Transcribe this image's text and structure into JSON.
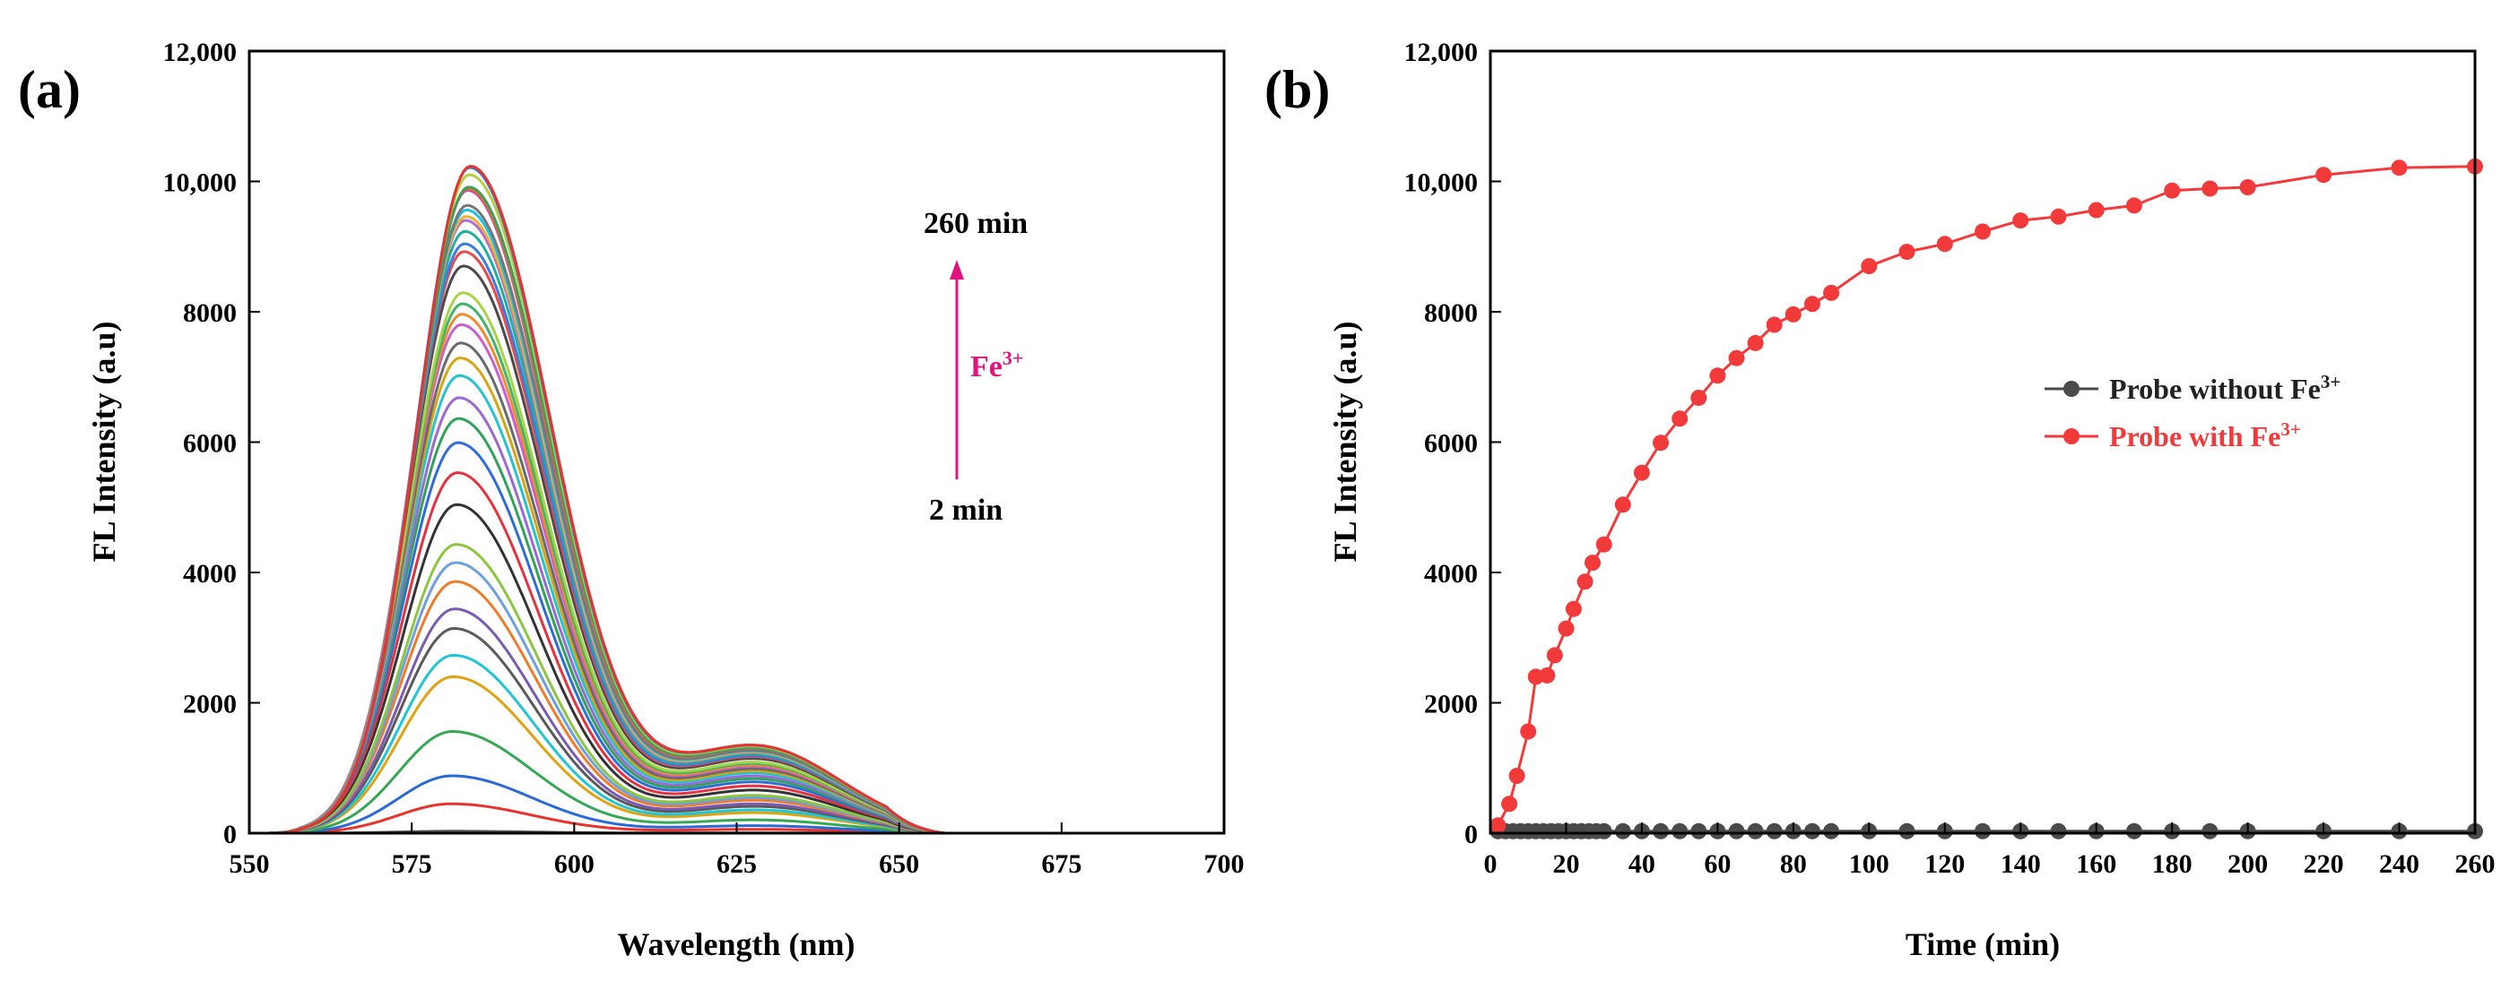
{
  "chart_data": [
    {
      "panel": "(a)",
      "type": "line",
      "title": "",
      "xlabel": "Wavelength (nm)",
      "ylabel": "FL Intensity (a.u)",
      "xlim": [
        550,
        700
      ],
      "ylim": [
        0,
        12000
      ],
      "xticks": [
        550,
        575,
        600,
        625,
        650,
        675,
        700
      ],
      "yticks": [
        0,
        2000,
        4000,
        6000,
        8000,
        10000,
        12000
      ],
      "xtick_labels": [
        "550",
        "575",
        "600",
        "625",
        "650",
        "675",
        "700"
      ],
      "ytick_labels": [
        "0",
        "2000",
        "4000",
        "6000",
        "8000",
        "10,000",
        "12,000"
      ],
      "peak_wavelengths_nm": [
        581,
        582,
        583,
        584
      ],
      "series_peak_intensities": [
        30,
        450,
        880,
        1560,
        2400,
        2730,
        3140,
        3440,
        3860,
        4150,
        4430,
        5040,
        5530,
        5990,
        6360,
        6680,
        7020,
        7290,
        7520,
        7800,
        7960,
        8120,
        8290,
        8700,
        8920,
        9040,
        9230,
        9400,
        9460,
        9560,
        9630,
        9860,
        9890,
        9910,
        10100,
        10210,
        10230
      ],
      "series_colors": [
        "#555555",
        "#e8322c",
        "#2a6ad6",
        "#35a853",
        "#e0a310",
        "#1ec6d6",
        "#5a5a5a",
        "#7a5ab3",
        "#f07c2a",
        "#6ea0e0",
        "#8cc63f",
        "#333333",
        "#e5323e",
        "#2f6cd9",
        "#2fa35a",
        "#9b6ad0",
        "#25c2cf",
        "#d6a514",
        "#6a6a6a",
        "#c75fd0",
        "#f28a2e",
        "#3fb46b",
        "#a7d446",
        "#4a4a4a",
        "#e84a4a",
        "#3a7de0",
        "#1bb0a0",
        "#b06ad0",
        "#f0b030",
        "#20c0e0",
        "#777777",
        "#d04fa0",
        "#e87020",
        "#3d9e5c",
        "#b0d040",
        "#2c7bd6",
        "#e8332e"
      ],
      "annotations": {
        "top": "260 min",
        "bottom": "2 min",
        "ion": "Fe",
        "ion_charge": "3+",
        "ion_color": "#e0137f"
      }
    },
    {
      "panel": "(b)",
      "type": "line",
      "title": "",
      "xlabel": "Time (min)",
      "ylabel": "FL Intensity (a.u)",
      "xlim": [
        0,
        260
      ],
      "ylim": [
        0,
        12000
      ],
      "xticks": [
        0,
        20,
        40,
        60,
        80,
        100,
        120,
        140,
        160,
        180,
        200,
        220,
        240,
        260
      ],
      "yticks": [
        0,
        2000,
        4000,
        6000,
        8000,
        10000,
        12000
      ],
      "xtick_labels": [
        "0",
        "20",
        "40",
        "60",
        "80",
        "100",
        "120",
        "140",
        "160",
        "180",
        "200",
        "220",
        "240",
        "260"
      ],
      "ytick_labels": [
        "0",
        "2000",
        "4000",
        "6000",
        "8000",
        "10,000",
        "12,000"
      ],
      "legend_position": "center-right",
      "series": [
        {
          "name": "Probe without Fe",
          "name_sup": "3+",
          "color": "#4a4a4a",
          "x": [
            2,
            4,
            6,
            8,
            10,
            12,
            14,
            16,
            18,
            20,
            22,
            24,
            26,
            28,
            30,
            35,
            40,
            45,
            50,
            55,
            60,
            65,
            70,
            75,
            80,
            85,
            90,
            100,
            110,
            120,
            130,
            140,
            150,
            160,
            170,
            180,
            190,
            200,
            220,
            240,
            260
          ],
          "y": [
            30,
            30,
            30,
            30,
            30,
            30,
            30,
            30,
            30,
            30,
            30,
            30,
            30,
            30,
            30,
            30,
            30,
            30,
            30,
            30,
            30,
            30,
            30,
            30,
            30,
            30,
            30,
            30,
            30,
            30,
            30,
            30,
            30,
            30,
            30,
            30,
            30,
            30,
            30,
            30,
            30
          ]
        },
        {
          "name": "Probe with Fe",
          "name_sup": "3+",
          "color": "#f23a3a",
          "x": [
            2,
            5,
            7,
            10,
            12,
            15,
            17,
            20,
            22,
            25,
            27,
            30,
            35,
            40,
            45,
            50,
            55,
            60,
            65,
            70,
            75,
            80,
            85,
            90,
            100,
            110,
            120,
            130,
            140,
            150,
            160,
            170,
            180,
            190,
            200,
            220,
            240,
            260
          ],
          "y": [
            120,
            450,
            880,
            1560,
            2400,
            2420,
            2730,
            3140,
            3440,
            3860,
            4150,
            4430,
            5040,
            5530,
            5990,
            6360,
            6680,
            7020,
            7290,
            7520,
            7800,
            7960,
            8120,
            8290,
            8700,
            8920,
            9040,
            9230,
            9400,
            9460,
            9560,
            9630,
            9860,
            9890,
            9910,
            10100,
            10210,
            10230
          ]
        }
      ]
    }
  ]
}
